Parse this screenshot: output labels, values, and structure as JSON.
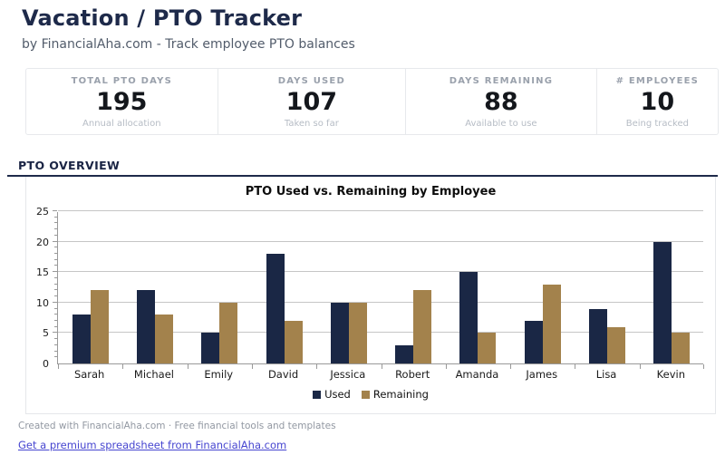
{
  "header": {
    "title": "Vacation / PTO Tracker",
    "subtitle": "by FinancialAha.com - Track employee PTO balances"
  },
  "stats": [
    {
      "label": "TOTAL PTO DAYS",
      "value": "195",
      "sublabel": "Annual allocation"
    },
    {
      "label": "DAYS USED",
      "value": "107",
      "sublabel": "Taken so far"
    },
    {
      "label": "DAYS REMAINING",
      "value": "88",
      "sublabel": "Available to use"
    },
    {
      "label": "# EMPLOYEES",
      "value": "10",
      "sublabel": "Being tracked"
    }
  ],
  "section": {
    "label": "PTO OVERVIEW"
  },
  "chart_data": {
    "type": "bar",
    "title": "PTO Used vs. Remaining by Employee",
    "categories": [
      "Sarah",
      "Michael",
      "Emily",
      "David",
      "Jessica",
      "Robert",
      "Amanda",
      "James",
      "Lisa",
      "Kevin"
    ],
    "series": [
      {
        "name": "Used",
        "color": "#1a2745",
        "values": [
          8,
          12,
          5,
          18,
          10,
          3,
          15,
          7,
          9,
          20
        ]
      },
      {
        "name": "Remaining",
        "color": "#a3824c",
        "values": [
          12,
          8,
          10,
          7,
          10,
          12,
          5,
          13,
          6,
          5
        ]
      }
    ],
    "xlabel": "",
    "ylabel": "",
    "ylim": [
      0,
      25
    ],
    "yticks": [
      0,
      5,
      10,
      15,
      20,
      25
    ],
    "grid": true,
    "legend_position": "bottom"
  },
  "footer": {
    "credit": "Created with FinancialAha.com · Free financial tools and templates",
    "link": "Get a premium spreadsheet from FinancialAha.com"
  },
  "colors": {
    "accent_navy": "#1e2a4a",
    "bar_used": "#1a2745",
    "bar_remaining": "#a3824c",
    "link": "#4645d0",
    "gridline": "#c6c6c6",
    "card_border": "#e7e9ec"
  }
}
